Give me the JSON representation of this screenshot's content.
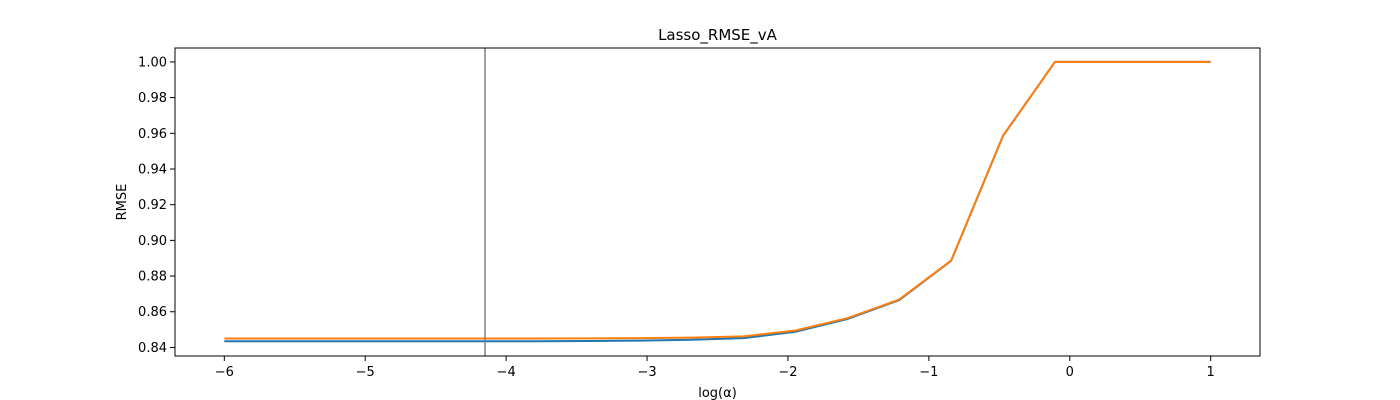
{
  "chart_data": {
    "type": "line",
    "title": "Lasso_RMSE_vA",
    "xlabel": "log(α)",
    "ylabel": "RMSE",
    "xlim": [
      -6.35,
      1.35
    ],
    "ylim": [
      0.8352,
      1.0078
    ],
    "xticks": [
      -6,
      -5,
      -4,
      -3,
      -2,
      -1,
      0,
      1
    ],
    "xtick_labels": [
      "−6",
      "−5",
      "−4",
      "−3",
      "−2",
      "−1",
      "0",
      "1"
    ],
    "yticks": [
      0.84,
      0.86,
      0.88,
      0.9,
      0.92,
      0.94,
      0.96,
      0.98,
      1.0
    ],
    "ytick_labels": [
      "0.84",
      "0.86",
      "0.88",
      "0.90",
      "0.92",
      "0.94",
      "0.96",
      "0.98",
      "1.00"
    ],
    "grid": false,
    "vline_x": -4.15,
    "vline_color": "#808080",
    "x": [
      -6.0,
      -5.632,
      -5.263,
      -4.895,
      -4.526,
      -4.158,
      -3.789,
      -3.421,
      -3.053,
      -2.684,
      -2.316,
      -1.947,
      -1.579,
      -1.211,
      -0.842,
      -0.474,
      -0.105,
      0.263,
      0.632,
      1.0
    ],
    "series": [
      {
        "color": "#1f77b4",
        "values": [
          0.8435,
          0.8435,
          0.8435,
          0.8435,
          0.8435,
          0.8435,
          0.8435,
          0.8436,
          0.8438,
          0.8443,
          0.8452,
          0.8488,
          0.8559,
          0.8665,
          0.8885,
          0.9585,
          1.0,
          1.0,
          1.0,
          1.0
        ]
      },
      {
        "color": "#ff7f0e",
        "values": [
          0.845,
          0.845,
          0.845,
          0.845,
          0.845,
          0.845,
          0.845,
          0.8451,
          0.8452,
          0.8455,
          0.8462,
          0.8495,
          0.8564,
          0.8668,
          0.8887,
          0.9587,
          1.0,
          1.0,
          1.0,
          1.0
        ]
      }
    ]
  }
}
